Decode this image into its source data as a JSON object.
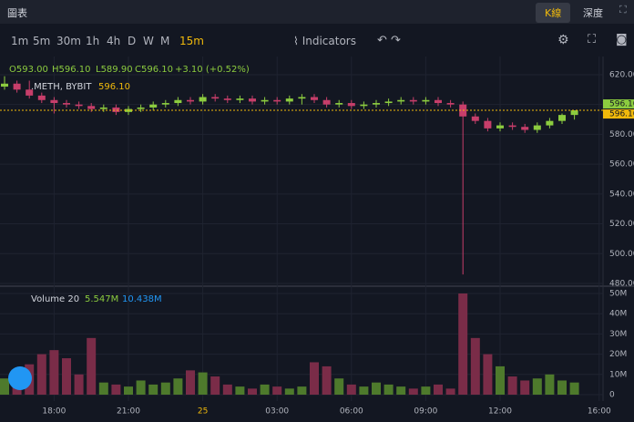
{
  "header": {
    "title": "圖表",
    "tabs": [
      "K線",
      "深度"
    ]
  },
  "toolbar": {
    "intervals": [
      "1m",
      "5m",
      "30m",
      "1h",
      "4h",
      "D",
      "W",
      "M",
      "15m"
    ],
    "active": 8,
    "indicators": "Indicators"
  },
  "legend": {
    "ohlc": [
      "O593.00",
      "H596.10",
      "L589.90",
      "C596.10",
      "+3.10 (+0.52%)"
    ],
    "symbol": ".METH, BYBIT",
    "price": "596.10",
    "volume_title": "Volume 20",
    "volume_values": [
      "5.547M",
      "10.438M"
    ]
  },
  "price_labels": [
    "596.10",
    "596.10"
  ],
  "chart_data": [
    {
      "type": "candlestick",
      "up_color": "#8ccc3f",
      "down_color": "#c73e6a",
      "categories": [
        null,
        null,
        null,
        null,
        "18:00",
        null,
        null,
        null,
        null,
        null,
        "21:00",
        null,
        null,
        null,
        null,
        null,
        "25",
        null,
        null,
        null,
        null,
        null,
        "03:00",
        null,
        null,
        null,
        null,
        null,
        "06:00",
        null,
        null,
        null,
        null,
        null,
        "09:00",
        null,
        null,
        null,
        null,
        null,
        "12:00",
        null,
        null,
        null,
        null,
        null,
        null,
        null,
        "16:00"
      ],
      "open": [
        612,
        614,
        610,
        606,
        603,
        601,
        600,
        599,
        597,
        598,
        595,
        597,
        598,
        600,
        601,
        603,
        602,
        605,
        604,
        603,
        604,
        602,
        603,
        602,
        604,
        605,
        603,
        600,
        601,
        599,
        600,
        601,
        602,
        603,
        602,
        603,
        601,
        600,
        592,
        589,
        584,
        586,
        585,
        583,
        586,
        589,
        593,
        null,
        null
      ],
      "high": [
        619,
        616,
        616,
        608,
        605,
        603,
        602,
        601,
        600,
        600,
        599,
        600,
        602,
        603,
        605,
        605,
        607,
        607,
        606,
        606,
        606,
        605,
        605,
        606,
        607,
        607,
        605,
        603,
        603,
        602,
        603,
        604,
        605,
        605,
        605,
        605,
        603,
        602,
        594,
        591,
        588,
        588,
        587,
        588,
        591,
        594,
        596.1,
        null,
        null
      ],
      "low": [
        610,
        608,
        604,
        601,
        594,
        598,
        597,
        595,
        595,
        593,
        593,
        595,
        596,
        598,
        599,
        600,
        600,
        602,
        601,
        601,
        600,
        600,
        600,
        600,
        600,
        601,
        598,
        598,
        597,
        597,
        598,
        599,
        600,
        600,
        600,
        599,
        598,
        486,
        587,
        582,
        582,
        583,
        581,
        581,
        584,
        587,
        589.9,
        null,
        null
      ],
      "close": [
        614,
        610,
        606,
        603,
        601,
        600,
        599,
        597,
        598,
        595,
        597,
        598,
        600,
        601,
        603,
        602,
        605,
        604,
        603,
        604,
        602,
        603,
        602,
        604,
        605,
        603,
        600,
        601,
        599,
        600,
        601,
        602,
        603,
        602,
        603,
        601,
        600,
        592,
        589,
        584,
        586,
        585,
        583,
        586,
        589,
        593,
        596.1,
        null,
        null
      ],
      "ylim": [
        480,
        632.2
      ],
      "yticks": [
        {
          "value": 620,
          "label": "620.00"
        },
        {
          "value": 600,
          "label": "600.00"
        },
        {
          "value": 580,
          "label": "580.00"
        },
        {
          "value": 560,
          "label": "560.00"
        },
        {
          "value": 540,
          "label": "540.00"
        },
        {
          "value": 520,
          "label": "520.00"
        },
        {
          "value": 500,
          "label": "500.00"
        },
        {
          "value": 480,
          "label": "480.00"
        }
      ],
      "grid": true
    },
    {
      "type": "volume",
      "values": [
        8,
        12,
        15,
        20,
        22,
        18,
        10,
        28,
        6,
        5,
        4,
        7,
        5,
        6,
        8,
        12,
        11,
        9,
        5,
        4,
        3,
        5,
        4,
        3,
        4,
        16,
        14,
        8,
        5,
        4,
        6,
        5,
        4,
        3,
        4,
        5,
        3,
        50,
        28,
        20,
        14,
        9,
        7,
        8,
        10,
        7,
        6,
        null,
        null
      ],
      "ylim": [
        0,
        51.8
      ],
      "yticks": [
        0,
        {
          "value": 10,
          "label": "10M"
        },
        {
          "value": 20,
          "label": "20M"
        },
        {
          "value": 30,
          "label": "30M"
        },
        {
          "value": 40,
          "label": "40M"
        },
        {
          "value": 50,
          "label": "50M"
        }
      ],
      "grid": true
    }
  ]
}
